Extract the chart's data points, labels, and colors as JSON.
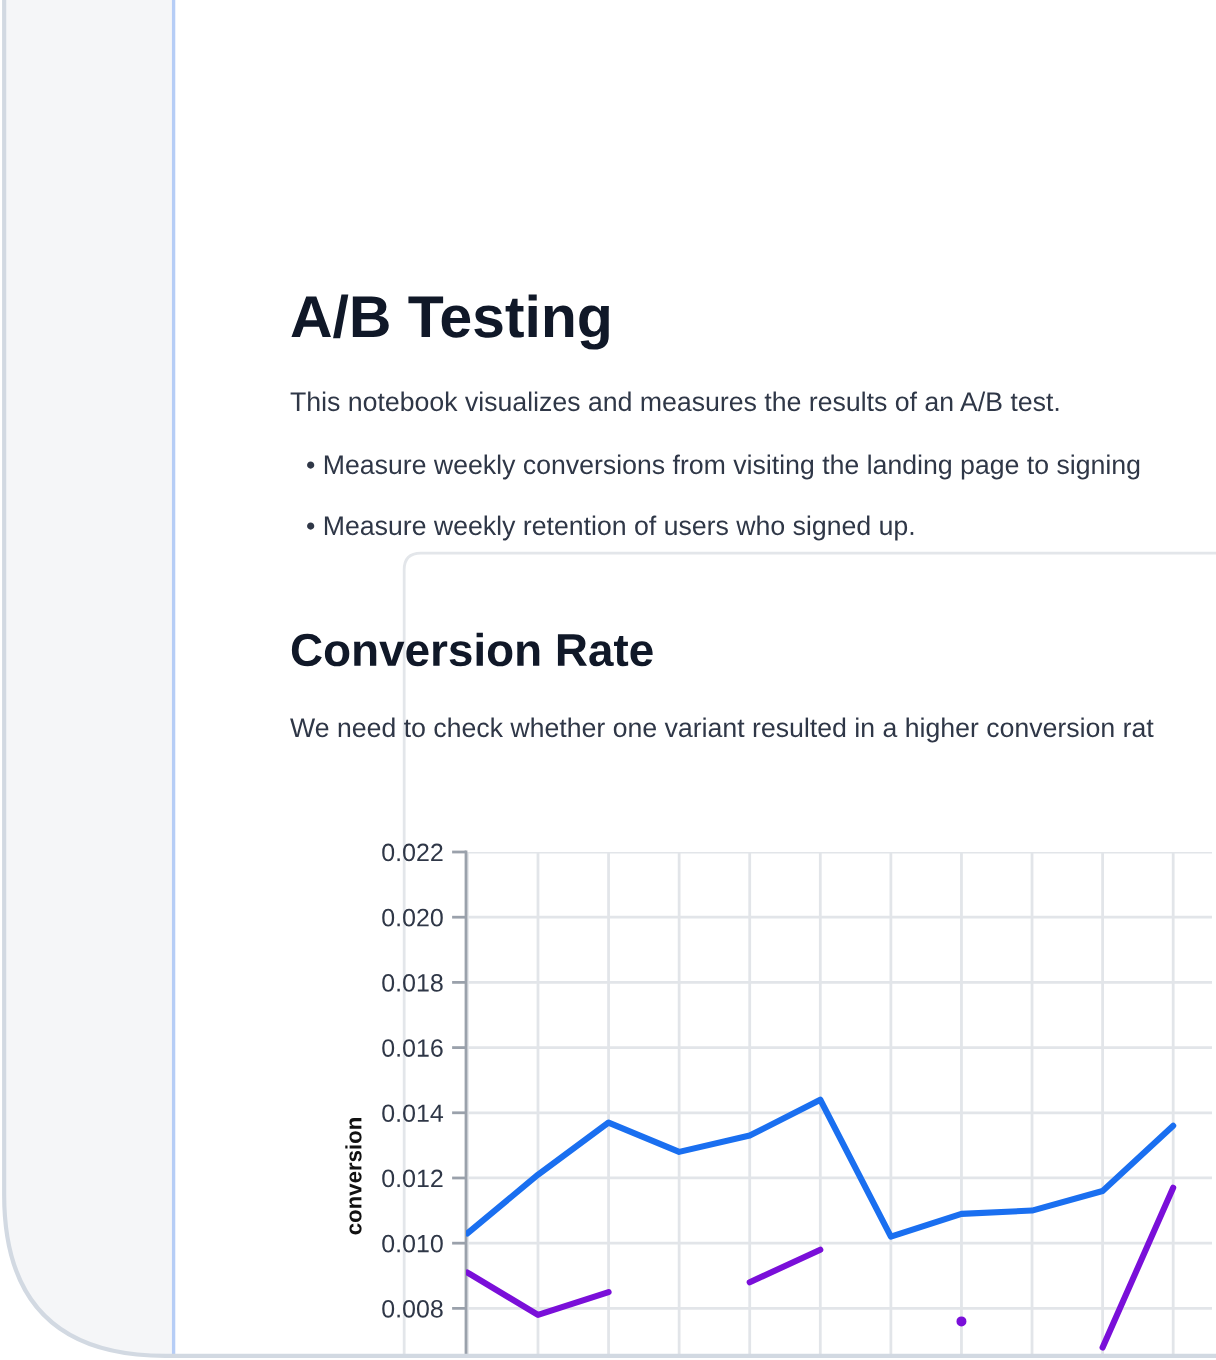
{
  "chart_data": {
    "type": "line",
    "title": "A/B Testing",
    "subtitle": "Conversion Rate",
    "annotations": [
      "This notebook visualizes and measures the results of an A/B test.",
      "• Measure weekly conversions from visiting the landing page to signing",
      "• Measure weekly retention of users who signed up.",
      "We need to check whether one variant resulted in a higher conversion rat"
    ],
    "ylabel": "conversion",
    "categories": [
      null,
      null,
      null,
      null,
      null,
      null,
      null,
      null,
      null,
      null,
      null
    ],
    "series": [
      {
        "color": "#1a6ff0",
        "values": [
          0.0103,
          0.0121,
          0.0137,
          0.0128,
          0.0133,
          0.0144,
          0.0102,
          0.0109,
          0.011,
          0.0116,
          0.0136
        ]
      },
      {
        "color": "#7a0fd9",
        "values": [
          0.0091,
          0.0078,
          0.0085,
          null,
          0.0088,
          0.0098,
          null,
          0.0076,
          null,
          0.0068,
          0.0117
        ]
      }
    ],
    "ylim": [
      0.0066,
      0.022
    ],
    "yticks": [
      0.008,
      {
        "value": 0.01,
        "label": "0.010"
      },
      0.012,
      0.014,
      0.016,
      0.018,
      {
        "value": 0.02,
        "label": "0.020"
      },
      0.022
    ],
    "grid": true,
    "tick_labels": "y",
    "line_style": "solid"
  }
}
